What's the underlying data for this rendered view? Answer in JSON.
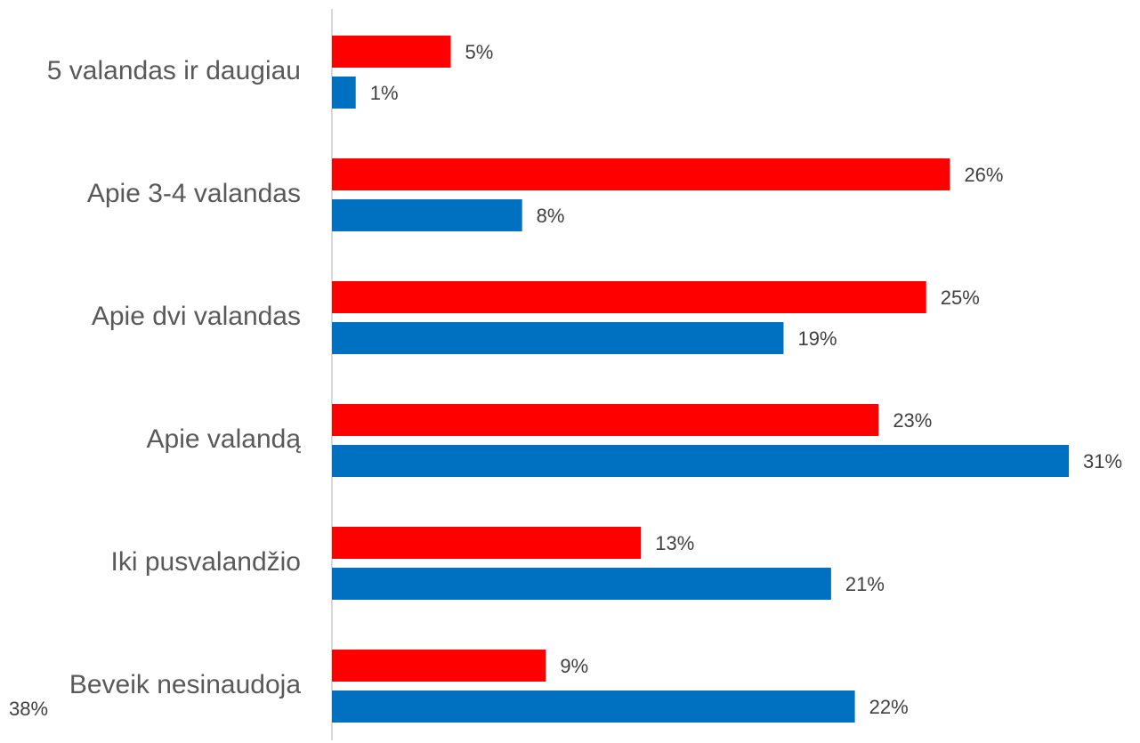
{
  "chart_data": {
    "type": "bar",
    "orientation": "horizontal",
    "categories": [
      "5 valandas ir daugiau",
      "Apie 3-4 valandas",
      "Apie dvi valandas",
      "Apie valandą",
      "Iki pusvalandžio",
      "Beveik nesinaudoja"
    ],
    "series": [
      {
        "color": "#ff0000",
        "values": [
          5,
          26,
          25,
          23,
          13,
          9
        ],
        "value_labels": [
          "5%",
          "26%",
          "25%",
          "23%",
          "13%",
          "9%"
        ]
      },
      {
        "color": "#0070c0",
        "values": [
          1,
          8,
          19,
          31,
          21,
          22
        ],
        "value_labels": [
          "1%",
          "8%",
          "19%",
          "31%",
          "21%",
          "22%"
        ]
      }
    ],
    "xlim": [
      0,
      31
    ],
    "annotations": [
      "38%"
    ]
  }
}
